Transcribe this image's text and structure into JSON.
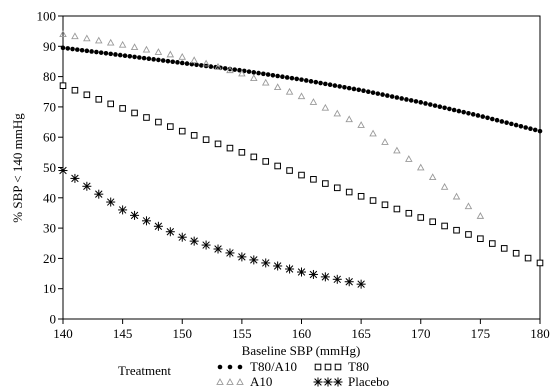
{
  "chart_data": {
    "type": "scatter",
    "title": "",
    "xlabel": "Baseline SBP (mmHg)",
    "ylabel": "% SBP < 140 mmHg",
    "xlim": [
      140,
      180
    ],
    "ylim": [
      0,
      100
    ],
    "xticks": [
      140,
      145,
      150,
      155,
      160,
      165,
      170,
      175,
      180
    ],
    "yticks": [
      0,
      10,
      20,
      30,
      40,
      50,
      60,
      70,
      80,
      90,
      100
    ],
    "grid": false,
    "legend": {
      "title": "Treatment",
      "placement": "bottom"
    },
    "series": [
      {
        "name": "T80/A10",
        "marker": "dot",
        "color": "#000000",
        "x": [
          140,
          145,
          150,
          155,
          160,
          165,
          170,
          175,
          180
        ],
        "y": [
          89.5,
          87,
          84.5,
          82,
          79,
          75.5,
          71.5,
          67,
          62
        ]
      },
      {
        "name": "T80",
        "marker": "square",
        "color": "#000000",
        "x": [
          140,
          145,
          150,
          155,
          160,
          165,
          170,
          175,
          180
        ],
        "y": [
          77,
          69.5,
          62,
          55,
          47.5,
          40.5,
          33.5,
          26.5,
          18.5
        ]
      },
      {
        "name": "A10",
        "marker": "triangle",
        "color": "#999999",
        "x": [
          140,
          145,
          150,
          155,
          160,
          165,
          170,
          175
        ],
        "y": [
          94,
          90.5,
          86.5,
          81,
          73.5,
          64,
          50,
          34
        ]
      },
      {
        "name": "Placebo",
        "marker": "star",
        "color": "#000000",
        "x": [
          140,
          145,
          150,
          155,
          160,
          165
        ],
        "y": [
          49,
          36,
          27,
          20.5,
          15.5,
          11.5
        ]
      }
    ]
  }
}
